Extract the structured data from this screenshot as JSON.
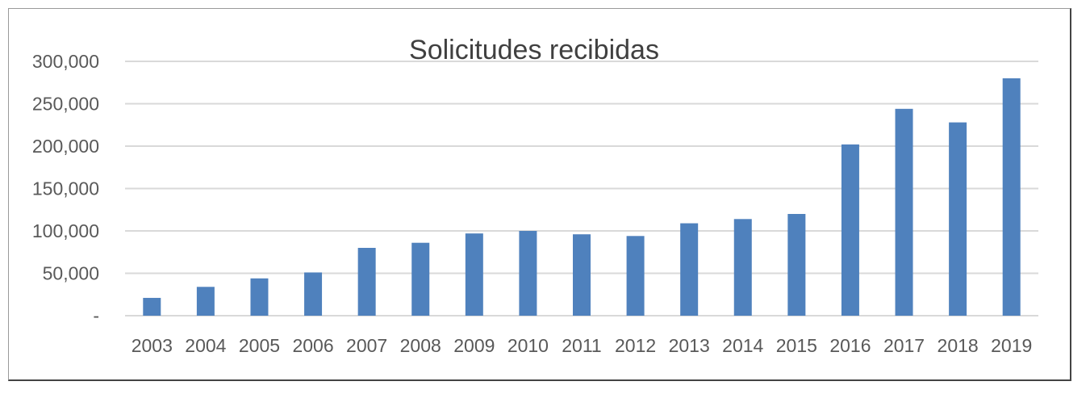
{
  "chart_data": {
    "type": "bar",
    "title": "Solicitudes recibidas",
    "xlabel": "",
    "ylabel": "",
    "categories": [
      "2003",
      "2004",
      "2005",
      "2006",
      "2007",
      "2008",
      "2009",
      "2010",
      "2011",
      "2012",
      "2013",
      "2014",
      "2015",
      "2016",
      "2017",
      "2018",
      "2019"
    ],
    "series": [
      {
        "values": [
          21000,
          34000,
          44000,
          51000,
          80000,
          86000,
          97000,
          100000,
          96000,
          94000,
          109000,
          114000,
          120000,
          202000,
          244000,
          228000,
          280000
        ]
      }
    ],
    "ylim": [
      0,
      300000
    ],
    "yticks": [
      "-",
      "50,000",
      "100,000",
      "150,000",
      "200,000",
      "250,000",
      "300,000"
    ],
    "grid": true,
    "legend": "none",
    "bar_color": "#4f81bd",
    "grid_color": "#d9d9d9"
  }
}
